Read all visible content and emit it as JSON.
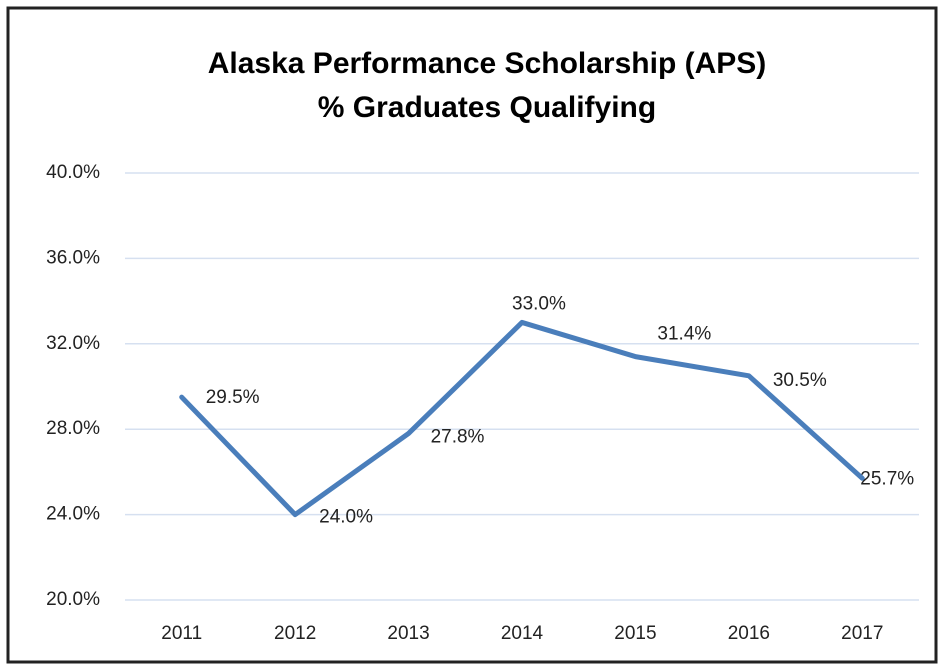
{
  "chart_data": {
    "type": "line",
    "title": "Alaska Performance Scholarship (APS)",
    "subtitle": "% Graduates Qualifying",
    "categories": [
      "2011",
      "2012",
      "2013",
      "2014",
      "2015",
      "2016",
      "2017"
    ],
    "series": [
      {
        "color": "#4a7ebb",
        "values": [
          29.5,
          24.0,
          27.8,
          33.0,
          31.4,
          30.5,
          25.7
        ],
        "value_labels": [
          "29.5%",
          "24.0%",
          "27.8%",
          "33.0%",
          "31.4%",
          "30.5%",
          "25.7%"
        ]
      }
    ],
    "ylim": [
      20,
      40
    ],
    "yticks": [
      {
        "value": 20,
        "label": "20.0%"
      },
      {
        "value": 24,
        "label": "24.0%"
      },
      {
        "value": 28,
        "label": "28.0%"
      },
      {
        "value": 32,
        "label": "32.0%"
      },
      {
        "value": 36,
        "label": "36.0%"
      },
      {
        "value": 40,
        "label": "40.0%"
      }
    ],
    "grid": true
  }
}
